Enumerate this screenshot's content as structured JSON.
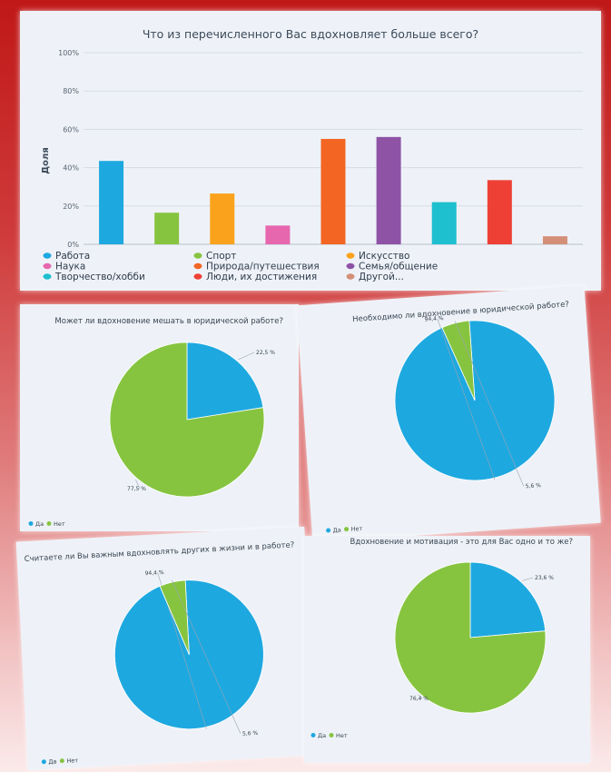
{
  "colors": {
    "blue": "#1ea8e0",
    "green": "#86c440",
    "orange": "#fba21c",
    "pink": "#e667ad",
    "dark_orange": "#f26522",
    "purple": "#8e53a5",
    "cyan": "#1ebfcf",
    "red": "#ee4035",
    "tan": "#d48f78"
  },
  "chart_data": [
    {
      "type": "bar",
      "title": "Что из перечисленного Вас вдохновляет больше всего?",
      "ylabel": "Доля",
      "xlabel": "",
      "ylim": [
        0,
        100
      ],
      "yticks": [
        "100%",
        "80%",
        "60%",
        "40%",
        "20%",
        "0%"
      ],
      "grid": true,
      "legend_position": "bottom",
      "categories": [
        "Работа",
        "Спорт",
        "Искусство",
        "Наука",
        "Природа/путешествия",
        "Семья/общение",
        "Творчество/хобби",
        "Люди, их достижения",
        "Другой..."
      ],
      "values": [
        43.5,
        16.5,
        26.5,
        9.8,
        55,
        56,
        22,
        33.5,
        4.2
      ],
      "colors": [
        "#1ea8e0",
        "#86c440",
        "#fba21c",
        "#e667ad",
        "#f26522",
        "#8e53a5",
        "#1ebfcf",
        "#ee4035",
        "#d48f78"
      ]
    },
    {
      "type": "pie",
      "title": "Может ли вдохновение мешать в юридической работе?",
      "categories": [
        "Да",
        "Нет"
      ],
      "values": [
        22.5,
        77.5
      ],
      "labels": [
        "22,5 %",
        "77,5 %"
      ],
      "colors": [
        "#1ea8e0",
        "#86c440"
      ]
    },
    {
      "type": "pie",
      "title": "Необходимо ли вдохновение в юридической работе?",
      "categories": [
        "Да",
        "Нет"
      ],
      "values": [
        94.4,
        5.6
      ],
      "labels": [
        "94,4 %",
        "5,6 %"
      ],
      "colors": [
        "#1ea8e0",
        "#86c440"
      ]
    },
    {
      "type": "pie",
      "title": "Считаете ли Вы важным вдохновлять других в жизни и в работе?",
      "categories": [
        "Да",
        "Нет"
      ],
      "values": [
        94.4,
        5.6
      ],
      "labels": [
        "94,4 %",
        "5,6 %"
      ],
      "colors": [
        "#1ea8e0",
        "#86c440"
      ]
    },
    {
      "type": "pie",
      "title": "Вдохновение и мотивация - это для Вас одно и то же?",
      "categories": [
        "Да",
        "Нет"
      ],
      "values": [
        23.6,
        76.4
      ],
      "labels": [
        "23,6 %",
        "76,4 %"
      ],
      "colors": [
        "#1ea8e0",
        "#86c440"
      ]
    }
  ]
}
